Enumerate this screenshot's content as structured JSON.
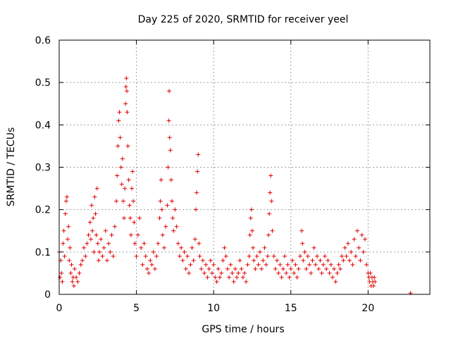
{
  "chart_data": {
    "type": "scatter",
    "title": "Day 225 of 2020, SRMTID for receiver yeel",
    "xlabel": "GPS time / hours",
    "ylabel": "SRMTID / TECUs",
    "xlim": [
      0,
      24
    ],
    "ylim": [
      0,
      0.6
    ],
    "x_ticks": [
      0,
      5,
      10,
      15,
      20
    ],
    "x_tick_labels": [
      "0",
      "5",
      "10",
      "15",
      "20"
    ],
    "y_ticks": [
      0,
      0.1,
      0.2,
      0.3,
      0.4,
      0.5,
      0.6
    ],
    "y_tick_labels": [
      "0",
      "0.1",
      "0.2",
      "0.3",
      "0.4",
      "0.5",
      "0.6"
    ],
    "grid": true,
    "marker": "+",
    "color": "#e00000",
    "series": [
      {
        "name": "SRMTID",
        "points": [
          [
            0.0,
            0.1
          ],
          [
            0.05,
            0.04
          ],
          [
            0.1,
            0.08
          ],
          [
            0.15,
            0.05
          ],
          [
            0.2,
            0.03
          ],
          [
            0.25,
            0.12
          ],
          [
            0.3,
            0.15
          ],
          [
            0.35,
            0.09
          ],
          [
            0.4,
            0.19
          ],
          [
            0.45,
            0.22
          ],
          [
            0.5,
            0.23
          ],
          [
            0.55,
            0.13
          ],
          [
            0.6,
            0.16
          ],
          [
            0.65,
            0.08
          ],
          [
            0.7,
            0.11
          ],
          [
            0.75,
            0.05
          ],
          [
            0.8,
            0.07
          ],
          [
            0.85,
            0.03
          ],
          [
            0.9,
            0.04
          ],
          [
            0.95,
            0.02
          ],
          [
            1.0,
            0.06
          ],
          [
            1.1,
            0.04
          ],
          [
            1.2,
            0.03
          ],
          [
            1.3,
            0.05
          ],
          [
            1.4,
            0.07
          ],
          [
            1.5,
            0.08
          ],
          [
            1.6,
            0.11
          ],
          [
            1.7,
            0.09
          ],
          [
            1.8,
            0.12
          ],
          [
            1.9,
            0.14
          ],
          [
            2.0,
            0.17
          ],
          [
            2.05,
            0.13
          ],
          [
            2.1,
            0.21
          ],
          [
            2.15,
            0.15
          ],
          [
            2.2,
            0.18
          ],
          [
            2.25,
            0.1
          ],
          [
            2.3,
            0.23
          ],
          [
            2.35,
            0.19
          ],
          [
            2.4,
            0.14
          ],
          [
            2.45,
            0.25
          ],
          [
            2.5,
            0.12
          ],
          [
            2.55,
            0.08
          ],
          [
            2.6,
            0.1
          ],
          [
            2.7,
            0.13
          ],
          [
            2.8,
            0.09
          ],
          [
            2.9,
            0.11
          ],
          [
            3.0,
            0.15
          ],
          [
            3.1,
            0.08
          ],
          [
            3.2,
            0.12
          ],
          [
            3.3,
            0.1
          ],
          [
            3.4,
            0.14
          ],
          [
            3.5,
            0.09
          ],
          [
            3.6,
            0.16
          ],
          [
            3.7,
            0.22
          ],
          [
            3.75,
            0.28
          ],
          [
            3.8,
            0.35
          ],
          [
            3.85,
            0.41
          ],
          [
            3.9,
            0.43
          ],
          [
            3.95,
            0.37
          ],
          [
            4.0,
            0.3
          ],
          [
            4.05,
            0.26
          ],
          [
            4.1,
            0.32
          ],
          [
            4.15,
            0.22
          ],
          [
            4.2,
            0.18
          ],
          [
            4.25,
            0.25
          ],
          [
            4.3,
            0.45
          ],
          [
            4.32,
            0.49
          ],
          [
            4.35,
            0.51
          ],
          [
            4.38,
            0.48
          ],
          [
            4.4,
            0.43
          ],
          [
            4.45,
            0.35
          ],
          [
            4.5,
            0.27
          ],
          [
            4.55,
            0.21
          ],
          [
            4.6,
            0.18
          ],
          [
            4.65,
            0.14
          ],
          [
            4.7,
            0.25
          ],
          [
            4.75,
            0.29
          ],
          [
            4.8,
            0.22
          ],
          [
            4.85,
            0.17
          ],
          [
            4.9,
            0.12
          ],
          [
            5.0,
            0.09
          ],
          [
            5.1,
            0.14
          ],
          [
            5.2,
            0.18
          ],
          [
            5.3,
            0.11
          ],
          [
            5.4,
            0.07
          ],
          [
            5.5,
            0.12
          ],
          [
            5.6,
            0.09
          ],
          [
            5.7,
            0.06
          ],
          [
            5.8,
            0.05
          ],
          [
            5.9,
            0.08
          ],
          [
            6.0,
            0.07
          ],
          [
            6.1,
            0.1
          ],
          [
            6.2,
            0.06
          ],
          [
            6.3,
            0.09
          ],
          [
            6.4,
            0.12
          ],
          [
            6.5,
            0.18
          ],
          [
            6.55,
            0.22
          ],
          [
            6.6,
            0.27
          ],
          [
            6.65,
            0.2
          ],
          [
            6.7,
            0.14
          ],
          [
            6.8,
            0.11
          ],
          [
            6.9,
            0.16
          ],
          [
            7.0,
            0.21
          ],
          [
            7.05,
            0.3
          ],
          [
            7.1,
            0.41
          ],
          [
            7.12,
            0.48
          ],
          [
            7.15,
            0.37
          ],
          [
            7.2,
            0.34
          ],
          [
            7.25,
            0.27
          ],
          [
            7.3,
            0.22
          ],
          [
            7.35,
            0.18
          ],
          [
            7.4,
            0.15
          ],
          [
            7.5,
            0.2
          ],
          [
            7.6,
            0.16
          ],
          [
            7.7,
            0.12
          ],
          [
            7.8,
            0.09
          ],
          [
            7.9,
            0.11
          ],
          [
            8.0,
            0.08
          ],
          [
            8.1,
            0.1
          ],
          [
            8.2,
            0.06
          ],
          [
            8.3,
            0.09
          ],
          [
            8.4,
            0.05
          ],
          [
            8.5,
            0.07
          ],
          [
            8.6,
            0.11
          ],
          [
            8.7,
            0.08
          ],
          [
            8.8,
            0.13
          ],
          [
            8.85,
            0.2
          ],
          [
            8.9,
            0.24
          ],
          [
            8.95,
            0.29
          ],
          [
            9.0,
            0.33
          ],
          [
            9.05,
            0.12
          ],
          [
            9.1,
            0.09
          ],
          [
            9.2,
            0.06
          ],
          [
            9.3,
            0.08
          ],
          [
            9.4,
            0.05
          ],
          [
            9.5,
            0.07
          ],
          [
            9.6,
            0.04
          ],
          [
            9.7,
            0.06
          ],
          [
            9.8,
            0.08
          ],
          [
            9.9,
            0.05
          ],
          [
            10.0,
            0.07
          ],
          [
            10.1,
            0.04
          ],
          [
            10.2,
            0.03
          ],
          [
            10.3,
            0.06
          ],
          [
            10.4,
            0.04
          ],
          [
            10.5,
            0.05
          ],
          [
            10.6,
            0.08
          ],
          [
            10.7,
            0.11
          ],
          [
            10.8,
            0.09
          ],
          [
            10.9,
            0.06
          ],
          [
            11.0,
            0.04
          ],
          [
            11.1,
            0.07
          ],
          [
            11.2,
            0.05
          ],
          [
            11.3,
            0.03
          ],
          [
            11.4,
            0.06
          ],
          [
            11.5,
            0.04
          ],
          [
            11.6,
            0.05
          ],
          [
            11.7,
            0.08
          ],
          [
            11.8,
            0.06
          ],
          [
            11.9,
            0.04
          ],
          [
            12.0,
            0.05
          ],
          [
            12.1,
            0.03
          ],
          [
            12.2,
            0.07
          ],
          [
            12.3,
            0.09
          ],
          [
            12.35,
            0.14
          ],
          [
            12.4,
            0.18
          ],
          [
            12.45,
            0.2
          ],
          [
            12.5,
            0.15
          ],
          [
            12.55,
            0.11
          ],
          [
            12.6,
            0.08
          ],
          [
            12.7,
            0.06
          ],
          [
            12.8,
            0.09
          ],
          [
            12.9,
            0.07
          ],
          [
            13.0,
            0.1
          ],
          [
            13.1,
            0.06
          ],
          [
            13.2,
            0.08
          ],
          [
            13.3,
            0.11
          ],
          [
            13.4,
            0.07
          ],
          [
            13.5,
            0.09
          ],
          [
            13.55,
            0.14
          ],
          [
            13.6,
            0.19
          ],
          [
            13.65,
            0.24
          ],
          [
            13.7,
            0.28
          ],
          [
            13.75,
            0.22
          ],
          [
            13.8,
            0.15
          ],
          [
            13.9,
            0.09
          ],
          [
            14.0,
            0.06
          ],
          [
            14.1,
            0.08
          ],
          [
            14.2,
            0.05
          ],
          [
            14.3,
            0.07
          ],
          [
            14.4,
            0.04
          ],
          [
            14.5,
            0.06
          ],
          [
            14.6,
            0.09
          ],
          [
            14.7,
            0.05
          ],
          [
            14.8,
            0.07
          ],
          [
            14.9,
            0.04
          ],
          [
            15.0,
            0.06
          ],
          [
            15.1,
            0.08
          ],
          [
            15.2,
            0.05
          ],
          [
            15.3,
            0.07
          ],
          [
            15.4,
            0.04
          ],
          [
            15.5,
            0.06
          ],
          [
            15.6,
            0.09
          ],
          [
            15.7,
            0.15
          ],
          [
            15.75,
            0.12
          ],
          [
            15.8,
            0.08
          ],
          [
            15.9,
            0.1
          ],
          [
            16.0,
            0.06
          ],
          [
            16.1,
            0.09
          ],
          [
            16.2,
            0.07
          ],
          [
            16.3,
            0.05
          ],
          [
            16.4,
            0.08
          ],
          [
            16.5,
            0.11
          ],
          [
            16.6,
            0.07
          ],
          [
            16.7,
            0.09
          ],
          [
            16.8,
            0.06
          ],
          [
            16.9,
            0.08
          ],
          [
            17.0,
            0.05
          ],
          [
            17.1,
            0.07
          ],
          [
            17.2,
            0.09
          ],
          [
            17.3,
            0.06
          ],
          [
            17.4,
            0.08
          ],
          [
            17.5,
            0.05
          ],
          [
            17.6,
            0.07
          ],
          [
            17.7,
            0.04
          ],
          [
            17.8,
            0.06
          ],
          [
            17.9,
            0.03
          ],
          [
            18.0,
            0.05
          ],
          [
            18.1,
            0.07
          ],
          [
            18.2,
            0.06
          ],
          [
            18.3,
            0.09
          ],
          [
            18.4,
            0.08
          ],
          [
            18.5,
            0.11
          ],
          [
            18.6,
            0.09
          ],
          [
            18.7,
            0.12
          ],
          [
            18.8,
            0.08
          ],
          [
            18.9,
            0.1
          ],
          [
            19.0,
            0.07
          ],
          [
            19.1,
            0.13
          ],
          [
            19.2,
            0.09
          ],
          [
            19.3,
            0.15
          ],
          [
            19.4,
            0.11
          ],
          [
            19.5,
            0.08
          ],
          [
            19.6,
            0.14
          ],
          [
            19.7,
            0.1
          ],
          [
            19.8,
            0.13
          ],
          [
            19.9,
            0.07
          ],
          [
            20.0,
            0.05
          ],
          [
            20.05,
            0.04
          ],
          [
            20.1,
            0.03
          ],
          [
            20.15,
            0.05
          ],
          [
            20.2,
            0.02
          ],
          [
            20.25,
            0.04
          ],
          [
            20.3,
            0.03
          ],
          [
            20.35,
            0.02
          ],
          [
            20.4,
            0.04
          ],
          [
            20.45,
            0.03
          ],
          [
            22.75,
            0.003
          ]
        ]
      }
    ]
  }
}
